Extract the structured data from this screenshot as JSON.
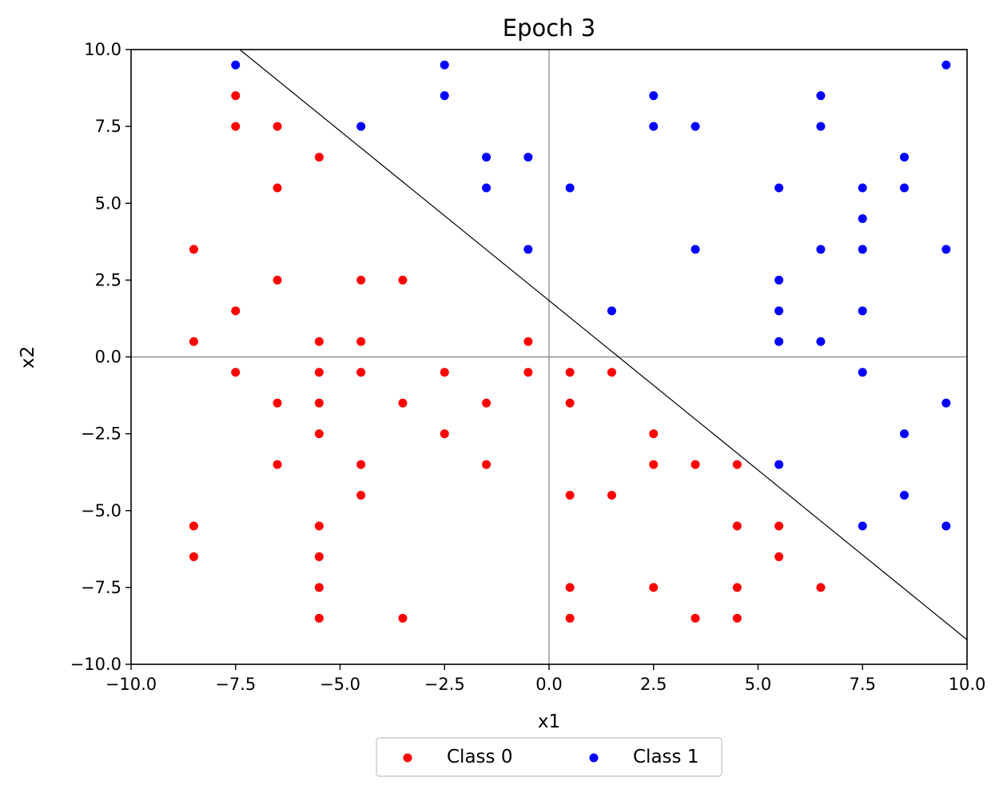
{
  "chart_data": {
    "type": "scatter",
    "title": "Epoch 3",
    "xlabel": "x1",
    "ylabel": "x2",
    "xlim": [
      -10,
      10
    ],
    "ylim": [
      -10,
      10
    ],
    "xticks": [
      -10,
      -7.5,
      -5,
      -2.5,
      0,
      2.5,
      5,
      7.5,
      10
    ],
    "yticks": [
      -10,
      -7.5,
      -5,
      -2.5,
      0,
      2.5,
      5,
      7.5,
      10
    ],
    "xtick_labels": [
      "−10.0",
      "−7.5",
      "−5.0",
      "−2.5",
      "0.0",
      "2.5",
      "5.0",
      "7.5",
      "10.0"
    ],
    "ytick_labels": [
      "−10.0",
      "−7.5",
      "−5.0",
      "−2.5",
      "0.0",
      "2.5",
      "5.0",
      "7.5",
      "10.0"
    ],
    "grid": false,
    "reference_lines": [
      "x=0",
      "y=0"
    ],
    "legend_position": "below plot, centered",
    "legend_columns": 2,
    "decision_boundary": {
      "color": "#000000",
      "points": [
        [
          -7.4,
          10.0
        ],
        [
          10.0,
          -9.2
        ]
      ]
    },
    "series": [
      {
        "name": "Class 0",
        "color": "#ff0000",
        "points": [
          [
            -7.5,
            8.5
          ],
          [
            -7.5,
            7.5
          ],
          [
            -6.5,
            7.5
          ],
          [
            -5.5,
            6.5
          ],
          [
            -6.5,
            5.5
          ],
          [
            -8.5,
            3.5
          ],
          [
            -6.5,
            2.5
          ],
          [
            -4.5,
            2.5
          ],
          [
            -3.5,
            2.5
          ],
          [
            -7.5,
            1.5
          ],
          [
            -8.5,
            0.5
          ],
          [
            -5.5,
            0.5
          ],
          [
            -4.5,
            0.5
          ],
          [
            -0.5,
            0.5
          ],
          [
            -7.5,
            -0.5
          ],
          [
            -5.5,
            -0.5
          ],
          [
            -4.5,
            -0.5
          ],
          [
            -2.5,
            -0.5
          ],
          [
            -0.5,
            -0.5
          ],
          [
            0.5,
            -0.5
          ],
          [
            1.5,
            -0.5
          ],
          [
            -6.5,
            -1.5
          ],
          [
            -5.5,
            -1.5
          ],
          [
            -3.5,
            -1.5
          ],
          [
            -1.5,
            -1.5
          ],
          [
            0.5,
            -1.5
          ],
          [
            -5.5,
            -2.5
          ],
          [
            -2.5,
            -2.5
          ],
          [
            2.5,
            -2.5
          ],
          [
            -6.5,
            -3.5
          ],
          [
            -4.5,
            -3.5
          ],
          [
            -1.5,
            -3.5
          ],
          [
            2.5,
            -3.5
          ],
          [
            3.5,
            -3.5
          ],
          [
            4.5,
            -3.5
          ],
          [
            -4.5,
            -4.5
          ],
          [
            0.5,
            -4.5
          ],
          [
            1.5,
            -4.5
          ],
          [
            -8.5,
            -5.5
          ],
          [
            -5.5,
            -5.5
          ],
          [
            4.5,
            -5.5
          ],
          [
            5.5,
            -5.5
          ],
          [
            -8.5,
            -6.5
          ],
          [
            -5.5,
            -6.5
          ],
          [
            5.5,
            -6.5
          ],
          [
            -5.5,
            -7.5
          ],
          [
            0.5,
            -7.5
          ],
          [
            2.5,
            -7.5
          ],
          [
            4.5,
            -7.5
          ],
          [
            6.5,
            -7.5
          ],
          [
            -5.5,
            -8.5
          ],
          [
            -3.5,
            -8.5
          ],
          [
            0.5,
            -8.5
          ],
          [
            3.5,
            -8.5
          ],
          [
            4.5,
            -8.5
          ]
        ]
      },
      {
        "name": "Class 1",
        "color": "#0000ff",
        "points": [
          [
            -7.5,
            9.5
          ],
          [
            -2.5,
            9.5
          ],
          [
            9.5,
            9.5
          ],
          [
            -2.5,
            8.5
          ],
          [
            2.5,
            8.5
          ],
          [
            6.5,
            8.5
          ],
          [
            -4.5,
            7.5
          ],
          [
            2.5,
            7.5
          ],
          [
            3.5,
            7.5
          ],
          [
            6.5,
            7.5
          ],
          [
            -1.5,
            6.5
          ],
          [
            -0.5,
            6.5
          ],
          [
            8.5,
            6.5
          ],
          [
            -1.5,
            5.5
          ],
          [
            0.5,
            5.5
          ],
          [
            5.5,
            5.5
          ],
          [
            7.5,
            5.5
          ],
          [
            8.5,
            5.5
          ],
          [
            7.5,
            4.5
          ],
          [
            -0.5,
            3.5
          ],
          [
            3.5,
            3.5
          ],
          [
            6.5,
            3.5
          ],
          [
            7.5,
            3.5
          ],
          [
            9.5,
            3.5
          ],
          [
            5.5,
            2.5
          ],
          [
            1.5,
            1.5
          ],
          [
            5.5,
            1.5
          ],
          [
            7.5,
            1.5
          ],
          [
            5.5,
            0.5
          ],
          [
            6.5,
            0.5
          ],
          [
            7.5,
            -0.5
          ],
          [
            9.5,
            -1.5
          ],
          [
            8.5,
            -2.5
          ],
          [
            5.5,
            -3.5
          ],
          [
            8.5,
            -4.5
          ],
          [
            7.5,
            -5.5
          ],
          [
            9.5,
            -5.5
          ]
        ]
      }
    ]
  }
}
